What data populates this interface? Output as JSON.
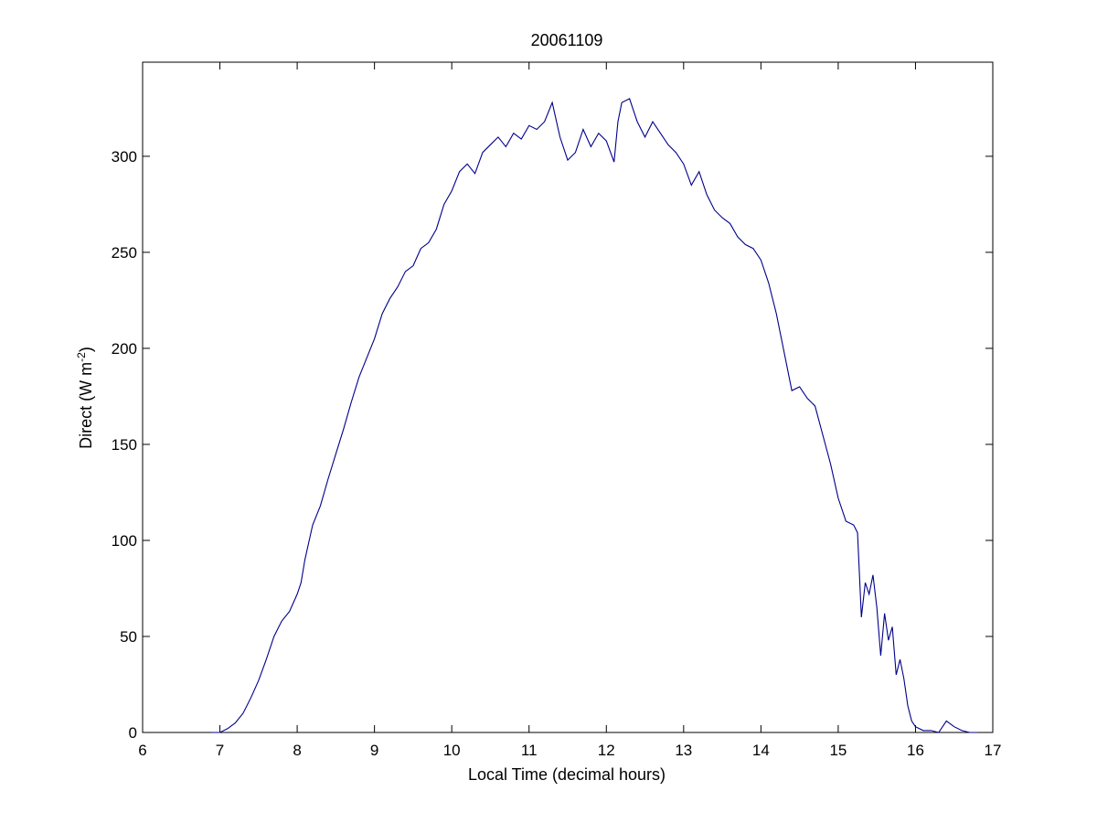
{
  "chart_data": {
    "type": "line",
    "title": "20061109",
    "xlabel": "Local Time (decimal hours)",
    "ylabel_main": "Direct (W m",
    "ylabel_sup": "-2",
    "ylabel_close": ")",
    "xlim": [
      6,
      17
    ],
    "ylim": [
      0,
      349
    ],
    "xticks": [
      6,
      7,
      8,
      9,
      10,
      11,
      12,
      13,
      14,
      15,
      16,
      17
    ],
    "yticks": [
      0,
      50,
      100,
      150,
      200,
      250,
      300
    ],
    "grid": false,
    "line_color": "#00008b",
    "series": [
      {
        "x": [
          6.9,
          7.0,
          7.1,
          7.2,
          7.3,
          7.4,
          7.5,
          7.6,
          7.7,
          7.8,
          7.9,
          8.0,
          8.05,
          8.1,
          8.2,
          8.3,
          8.4,
          8.5,
          8.6,
          8.7,
          8.8,
          8.9,
          9.0,
          9.1,
          9.2,
          9.3,
          9.4,
          9.5,
          9.6,
          9.7,
          9.8,
          9.9,
          10.0,
          10.1,
          10.2,
          10.3,
          10.4,
          10.5,
          10.6,
          10.7,
          10.8,
          10.9,
          11.0,
          11.1,
          11.2,
          11.3,
          11.4,
          11.5,
          11.6,
          11.7,
          11.8,
          11.9,
          12.0,
          12.1,
          12.15,
          12.2,
          12.3,
          12.4,
          12.5,
          12.6,
          12.7,
          12.8,
          12.9,
          13.0,
          13.1,
          13.2,
          13.3,
          13.4,
          13.5,
          13.6,
          13.7,
          13.8,
          13.9,
          14.0,
          14.1,
          14.2,
          14.3,
          14.4,
          14.5,
          14.6,
          14.7,
          14.8,
          14.9,
          15.0,
          15.1,
          15.2,
          15.25,
          15.3,
          15.35,
          15.4,
          15.45,
          15.5,
          15.55,
          15.6,
          15.65,
          15.7,
          15.75,
          15.8,
          15.85,
          15.9,
          15.95,
          16.0,
          16.1,
          16.2,
          16.3,
          16.4,
          16.5,
          16.6,
          16.7,
          16.8
        ],
        "y": [
          0,
          0,
          2,
          5,
          10,
          18,
          27,
          38,
          50,
          58,
          63,
          72,
          78,
          90,
          108,
          118,
          132,
          145,
          158,
          172,
          185,
          195,
          205,
          218,
          226,
          232,
          240,
          243,
          252,
          255,
          262,
          275,
          282,
          292,
          296,
          291,
          302,
          306,
          310,
          305,
          312,
          309,
          316,
          314,
          318,
          328,
          310,
          298,
          302,
          314,
          305,
          312,
          308,
          297,
          318,
          328,
          330,
          318,
          310,
          318,
          312,
          306,
          302,
          296,
          285,
          292,
          280,
          272,
          268,
          265,
          258,
          254,
          252,
          246,
          234,
          218,
          198,
          178,
          180,
          174,
          170,
          155,
          140,
          122,
          110,
          108,
          104,
          60,
          78,
          72,
          82,
          65,
          40,
          62,
          48,
          55,
          30,
          38,
          28,
          14,
          6,
          3,
          1,
          1,
          0,
          6,
          3,
          1,
          0,
          0
        ]
      }
    ]
  }
}
